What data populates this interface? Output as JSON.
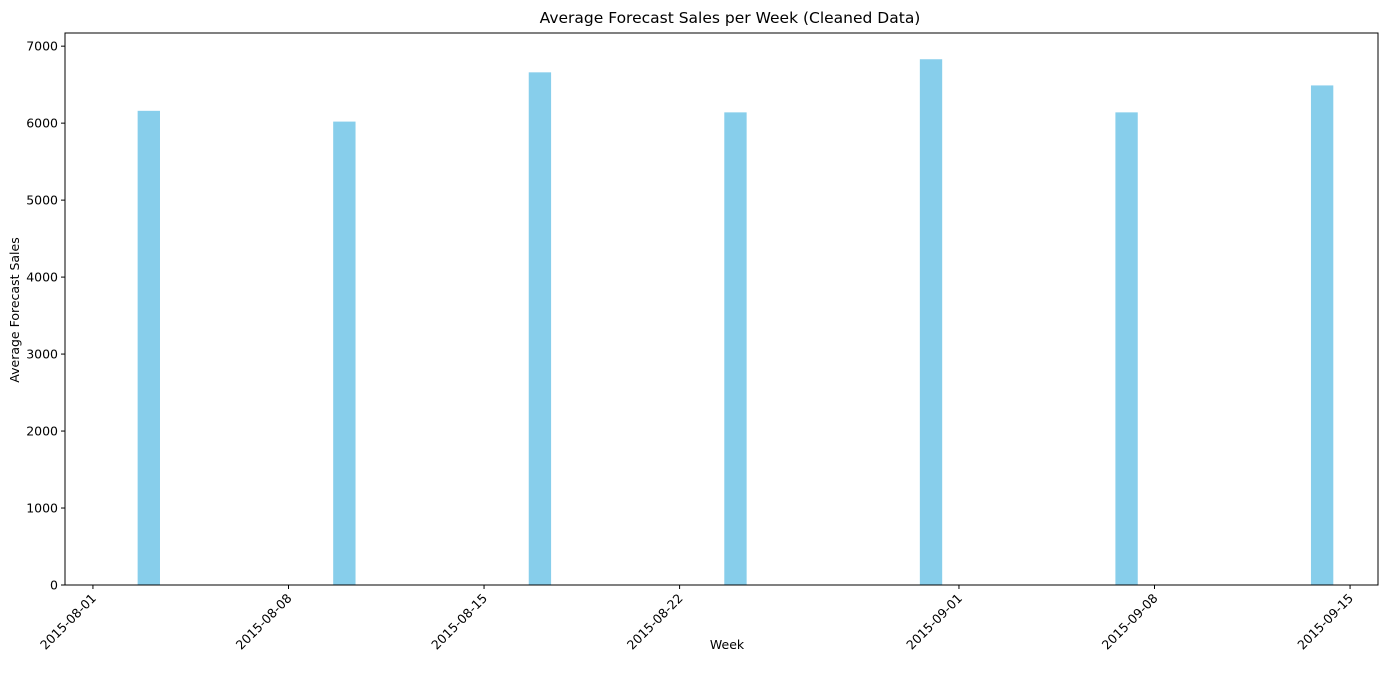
{
  "chart_data": {
    "type": "bar",
    "title": "Average Forecast Sales per Week (Cleaned Data)",
    "xlabel": "Week",
    "ylabel": "Average Forecast Sales",
    "x_axis_type": "date",
    "x": [
      "2015-08-03",
      "2015-08-10",
      "2015-08-17",
      "2015-08-24",
      "2015-08-31",
      "2015-09-07",
      "2015-09-14"
    ],
    "values": [
      6160,
      6020,
      6660,
      6140,
      6830,
      6140,
      6490
    ],
    "x_ticks": [
      "2015-08-01",
      "2015-08-08",
      "2015-08-15",
      "2015-08-22",
      "2015-09-01",
      "2015-09-08",
      "2015-09-15"
    ],
    "y_ticks": [
      0,
      1000,
      2000,
      3000,
      4000,
      5000,
      6000,
      7000
    ],
    "xlim": [
      "2015-07-31",
      "2015-09-16"
    ],
    "ylim": [
      0,
      7171
    ],
    "bar_width_days": 0.8,
    "color": "#87CEEB",
    "grid": false,
    "legend": "none"
  }
}
